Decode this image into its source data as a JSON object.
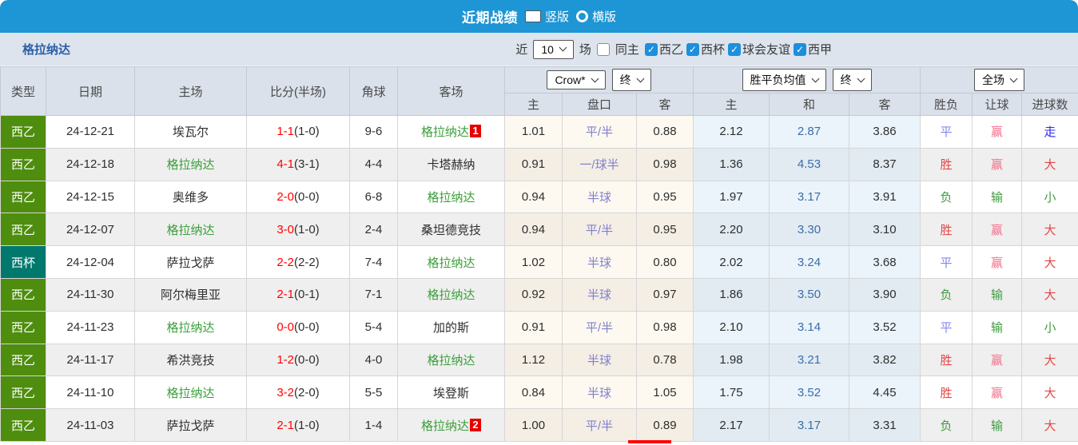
{
  "colors": {
    "accent_blue": "#1e95d4",
    "team_highlight": "#3a9f3a",
    "score_red": "#ff0000",
    "handicap_purple": "#8080cc",
    "avg_mid_blue": "#3a6ea8",
    "liga2_green": "#4e8d0e",
    "cup_teal": "#00786e",
    "badge_red": "#e60000",
    "red": "#e54545",
    "pink": "#f4708c",
    "green": "#3f9b3f",
    "blue": "#8585f0",
    "deepblue": "#2929e8"
  },
  "topbar": {
    "title": "近期战绩",
    "radios": [
      {
        "label": "竖版",
        "selected": true
      },
      {
        "label": "横版",
        "selected": false
      }
    ]
  },
  "filterbar": {
    "team": "格拉纳达",
    "recent_label": "近",
    "recent_value": "10",
    "matches_label": "场",
    "same_home": {
      "label": "同主",
      "checked": false
    },
    "leagues": [
      {
        "label": "西乙",
        "checked": true
      },
      {
        "label": "西杯",
        "checked": true
      },
      {
        "label": "球会友谊",
        "checked": true
      },
      {
        "label": "西甲",
        "checked": true
      }
    ]
  },
  "table": {
    "dropdowns": {
      "company": "Crow*",
      "company_time": "终",
      "avg": "胜平负均值",
      "avg_time": "终",
      "scope": "全场"
    },
    "headers": {
      "type": "类型",
      "date": "日期",
      "home": "主场",
      "score": "比分(半场)",
      "corner": "角球",
      "away": "客场",
      "odds_home": "主",
      "handicap": "盘口",
      "odds_away": "客",
      "avg_home": "主",
      "avg_draw": "和",
      "avg_away": "客",
      "result": "胜负",
      "handicap_result": "让球",
      "goals": "进球数"
    },
    "rows": [
      {
        "type": "西乙",
        "type_key": "liga2",
        "date": "24-12-21",
        "home": "埃瓦尔",
        "home_highlight": false,
        "score": "1-1",
        "half": "(1-0)",
        "corner": "9-6",
        "away": "格拉纳达",
        "away_highlight": true,
        "away_badge": "1",
        "odds": [
          "1.01",
          "平/半",
          "0.88"
        ],
        "avg": [
          "2.12",
          "2.87",
          "3.86"
        ],
        "result": {
          "text": "平",
          "color": "blue"
        },
        "handicap_result": {
          "text": "赢",
          "color": "pink"
        },
        "goals": {
          "text": "走",
          "color": "deepblue"
        }
      },
      {
        "type": "西乙",
        "type_key": "liga2",
        "date": "24-12-18",
        "home": "格拉纳达",
        "home_highlight": true,
        "score": "4-1",
        "half": "(3-1)",
        "corner": "4-4",
        "away": "卡塔赫纳",
        "away_highlight": false,
        "away_badge": null,
        "odds": [
          "0.91",
          "一/球半",
          "0.98"
        ],
        "avg": [
          "1.36",
          "4.53",
          "8.37"
        ],
        "result": {
          "text": "胜",
          "color": "red"
        },
        "handicap_result": {
          "text": "赢",
          "color": "pink"
        },
        "goals": {
          "text": "大",
          "color": "red"
        }
      },
      {
        "type": "西乙",
        "type_key": "liga2",
        "date": "24-12-15",
        "home": "奥维多",
        "home_highlight": false,
        "score": "2-0",
        "half": "(0-0)",
        "corner": "6-8",
        "away": "格拉纳达",
        "away_highlight": true,
        "away_badge": null,
        "odds": [
          "0.94",
          "半球",
          "0.95"
        ],
        "avg": [
          "1.97",
          "3.17",
          "3.91"
        ],
        "result": {
          "text": "负",
          "color": "green"
        },
        "handicap_result": {
          "text": "输",
          "color": "green"
        },
        "goals": {
          "text": "小",
          "color": "green"
        }
      },
      {
        "type": "西乙",
        "type_key": "liga2",
        "date": "24-12-07",
        "home": "格拉纳达",
        "home_highlight": true,
        "score": "3-0",
        "half": "(1-0)",
        "corner": "2-4",
        "away": "桑坦德竞技",
        "away_highlight": false,
        "away_badge": null,
        "odds": [
          "0.94",
          "平/半",
          "0.95"
        ],
        "avg": [
          "2.20",
          "3.30",
          "3.10"
        ],
        "result": {
          "text": "胜",
          "color": "red"
        },
        "handicap_result": {
          "text": "赢",
          "color": "pink"
        },
        "goals": {
          "text": "大",
          "color": "red"
        }
      },
      {
        "type": "西杯",
        "type_key": "cup",
        "date": "24-12-04",
        "home": "萨拉戈萨",
        "home_highlight": false,
        "score": "2-2",
        "half": "(2-2)",
        "corner": "7-4",
        "away": "格拉纳达",
        "away_highlight": true,
        "away_badge": null,
        "odds": [
          "1.02",
          "半球",
          "0.80"
        ],
        "avg": [
          "2.02",
          "3.24",
          "3.68"
        ],
        "result": {
          "text": "平",
          "color": "blue"
        },
        "handicap_result": {
          "text": "赢",
          "color": "pink"
        },
        "goals": {
          "text": "大",
          "color": "red"
        }
      },
      {
        "type": "西乙",
        "type_key": "liga2",
        "date": "24-11-30",
        "home": "阿尔梅里亚",
        "home_highlight": false,
        "score": "2-1",
        "half": "(0-1)",
        "corner": "7-1",
        "away": "格拉纳达",
        "away_highlight": true,
        "away_badge": null,
        "odds": [
          "0.92",
          "半球",
          "0.97"
        ],
        "avg": [
          "1.86",
          "3.50",
          "3.90"
        ],
        "result": {
          "text": "负",
          "color": "green"
        },
        "handicap_result": {
          "text": "输",
          "color": "green"
        },
        "goals": {
          "text": "大",
          "color": "red"
        }
      },
      {
        "type": "西乙",
        "type_key": "liga2",
        "date": "24-11-23",
        "home": "格拉纳达",
        "home_highlight": true,
        "score": "0-0",
        "half": "(0-0)",
        "corner": "5-4",
        "away": "加的斯",
        "away_highlight": false,
        "away_badge": null,
        "odds": [
          "0.91",
          "平/半",
          "0.98"
        ],
        "avg": [
          "2.10",
          "3.14",
          "3.52"
        ],
        "result": {
          "text": "平",
          "color": "blue"
        },
        "handicap_result": {
          "text": "输",
          "color": "green"
        },
        "goals": {
          "text": "小",
          "color": "green"
        }
      },
      {
        "type": "西乙",
        "type_key": "liga2",
        "date": "24-11-17",
        "home": "希洪竞技",
        "home_highlight": false,
        "score": "1-2",
        "half": "(0-0)",
        "corner": "4-0",
        "away": "格拉纳达",
        "away_highlight": true,
        "away_badge": null,
        "odds": [
          "1.12",
          "半球",
          "0.78"
        ],
        "avg": [
          "1.98",
          "3.21",
          "3.82"
        ],
        "result": {
          "text": "胜",
          "color": "red"
        },
        "handicap_result": {
          "text": "赢",
          "color": "pink"
        },
        "goals": {
          "text": "大",
          "color": "red"
        }
      },
      {
        "type": "西乙",
        "type_key": "liga2",
        "date": "24-11-10",
        "home": "格拉纳达",
        "home_highlight": true,
        "score": "3-2",
        "half": "(2-0)",
        "corner": "5-5",
        "away": "埃登斯",
        "away_highlight": false,
        "away_badge": null,
        "odds": [
          "0.84",
          "半球",
          "1.05"
        ],
        "avg": [
          "1.75",
          "3.52",
          "4.45"
        ],
        "result": {
          "text": "胜",
          "color": "red"
        },
        "handicap_result": {
          "text": "赢",
          "color": "pink"
        },
        "goals": {
          "text": "大",
          "color": "red"
        }
      },
      {
        "type": "西乙",
        "type_key": "liga2",
        "date": "24-11-03",
        "home": "萨拉戈萨",
        "home_highlight": false,
        "score": "2-1",
        "half": "(1-0)",
        "corner": "1-4",
        "away": "格拉纳达",
        "away_highlight": true,
        "away_badge": "2",
        "odds": [
          "1.00",
          "平/半",
          "0.89"
        ],
        "avg": [
          "2.17",
          "3.17",
          "3.31"
        ],
        "result": {
          "text": "负",
          "color": "green"
        },
        "handicap_result": {
          "text": "输",
          "color": "green"
        },
        "goals": {
          "text": "大",
          "color": "red"
        }
      }
    ]
  }
}
